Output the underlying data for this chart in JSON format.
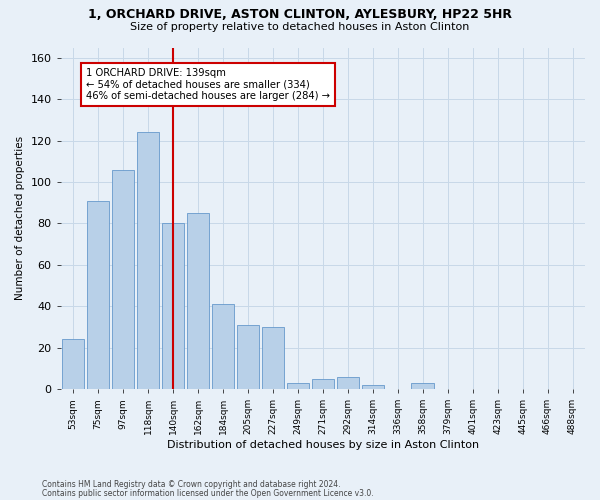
{
  "title_line1": "1, ORCHARD DRIVE, ASTON CLINTON, AYLESBURY, HP22 5HR",
  "title_line2": "Size of property relative to detached houses in Aston Clinton",
  "xlabel": "Distribution of detached houses by size in Aston Clinton",
  "ylabel": "Number of detached properties",
  "bar_labels": [
    "53sqm",
    "75sqm",
    "97sqm",
    "118sqm",
    "140sqm",
    "162sqm",
    "184sqm",
    "205sqm",
    "227sqm",
    "249sqm",
    "271sqm",
    "292sqm",
    "314sqm",
    "336sqm",
    "358sqm",
    "379sqm",
    "401sqm",
    "423sqm",
    "445sqm",
    "466sqm",
    "488sqm"
  ],
  "bar_values": [
    24,
    91,
    106,
    124,
    80,
    85,
    41,
    31,
    30,
    3,
    5,
    6,
    2,
    0,
    3,
    0,
    0,
    0,
    0,
    0,
    0
  ],
  "bar_color": "#b8d0e8",
  "bar_edgecolor": "#6699cc",
  "annotation_text_line1": "1 ORCHARD DRIVE: 139sqm",
  "annotation_text_line2": "← 54% of detached houses are smaller (334)",
  "annotation_text_line3": "46% of semi-detached houses are larger (284) →",
  "annotation_box_color": "#ffffff",
  "annotation_box_edgecolor": "#cc0000",
  "vline_color": "#cc0000",
  "vline_x": 4.0,
  "ylim": [
    0,
    165
  ],
  "yticks": [
    0,
    20,
    40,
    60,
    80,
    100,
    120,
    140,
    160
  ],
  "grid_color": "#c8d8e8",
  "bg_color": "#e8f0f8",
  "footer_line1": "Contains HM Land Registry data © Crown copyright and database right 2024.",
  "footer_line2": "Contains public sector information licensed under the Open Government Licence v3.0."
}
